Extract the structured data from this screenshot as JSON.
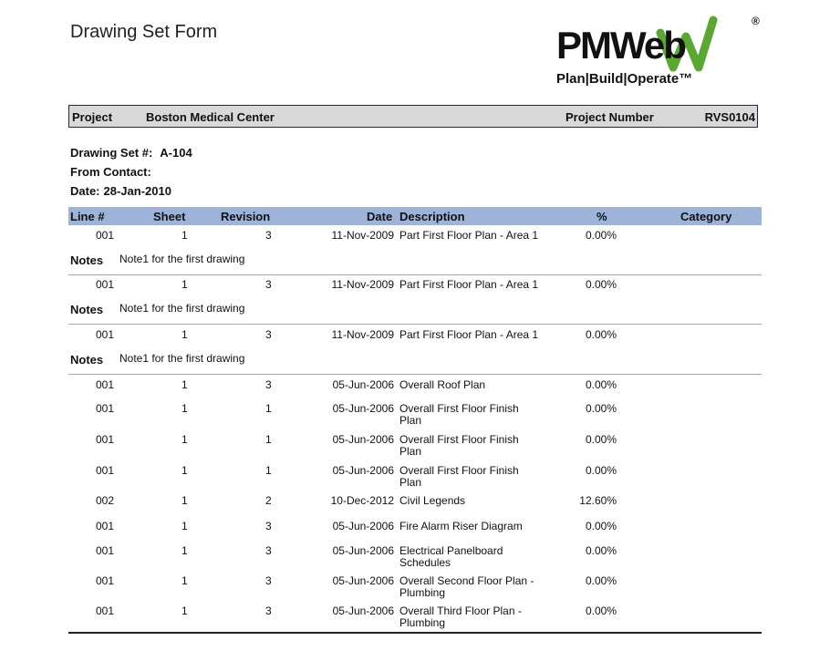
{
  "form": {
    "title": "Drawing Set Form"
  },
  "logo": {
    "word": "PMWeb",
    "tagline": "Plan|Build|Operate™",
    "registered": "®"
  },
  "project": {
    "label": "Project",
    "name": "Boston Medical Center",
    "number_label": "Project Number",
    "number": "RVS0104"
  },
  "drawing_set": {
    "label": "Drawing Set #:",
    "value": "A-104",
    "contact_label": "From Contact:",
    "contact_value": "",
    "date_label": "Date:",
    "date_value": "28-Jan-2010"
  },
  "table": {
    "headers": {
      "line": "Line #",
      "sheet": "Sheet",
      "revision": "Revision",
      "date": "Date",
      "description": "Description",
      "percent": "%",
      "category": "Category"
    },
    "notes_label": "Notes",
    "rows": [
      {
        "line": "001",
        "sheet": "1",
        "revision": "3",
        "date": "11-Nov-2009",
        "description": [
          "Part First Floor Plan - Area 1"
        ],
        "percent": "0.00%",
        "category": "",
        "notes": "Note1 for the first drawing"
      },
      {
        "line": "001",
        "sheet": "1",
        "revision": "3",
        "date": "11-Nov-2009",
        "description": [
          "Part First Floor Plan - Area 1"
        ],
        "percent": "0.00%",
        "category": "",
        "notes": "Note1 for the first drawing"
      },
      {
        "line": "001",
        "sheet": "1",
        "revision": "3",
        "date": "11-Nov-2009",
        "description": [
          "Part First Floor Plan - Area 1"
        ],
        "percent": "0.00%",
        "category": "",
        "notes": "Note1 for the first drawing"
      },
      {
        "line": "001",
        "sheet": "1",
        "revision": "3",
        "date": "05-Jun-2006",
        "description": [
          "Overall Roof Plan"
        ],
        "percent": "0.00%",
        "category": ""
      },
      {
        "line": "001",
        "sheet": "1",
        "revision": "1",
        "date": "05-Jun-2006",
        "description": [
          "Overall First Floor Finish",
          "Plan"
        ],
        "percent": "0.00%",
        "category": ""
      },
      {
        "line": "001",
        "sheet": "1",
        "revision": "1",
        "date": "05-Jun-2006",
        "description": [
          "Overall First Floor Finish",
          "Plan"
        ],
        "percent": "0.00%",
        "category": ""
      },
      {
        "line": "001",
        "sheet": "1",
        "revision": "1",
        "date": "05-Jun-2006",
        "description": [
          "Overall First Floor Finish",
          "Plan"
        ],
        "percent": "0.00%",
        "category": ""
      },
      {
        "line": "002",
        "sheet": "1",
        "revision": "2",
        "date": "10-Dec-2012",
        "description": [
          "Civil Legends"
        ],
        "percent": "12.60%",
        "category": ""
      },
      {
        "line": "001",
        "sheet": "1",
        "revision": "3",
        "date": "05-Jun-2006",
        "description": [
          "Fire Alarm Riser Diagram"
        ],
        "percent": "0.00%",
        "category": ""
      },
      {
        "line": "001",
        "sheet": "1",
        "revision": "3",
        "date": "05-Jun-2006",
        "description": [
          "Electrical Panelboard",
          "Schedules"
        ],
        "percent": "0.00%",
        "category": ""
      },
      {
        "line": "001",
        "sheet": "1",
        "revision": "3",
        "date": "05-Jun-2006",
        "description": [
          "Overall Second Floor Plan -",
          "Plumbing"
        ],
        "percent": "0.00%",
        "category": ""
      },
      {
        "line": "001",
        "sheet": "1",
        "revision": "3",
        "date": "05-Jun-2006",
        "description": [
          "Overall Third Floor Plan -",
          "Plumbing"
        ],
        "percent": "0.00%",
        "category": ""
      }
    ]
  }
}
